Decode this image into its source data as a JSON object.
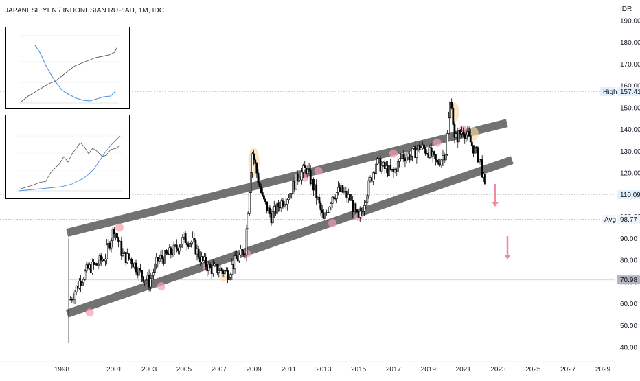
{
  "header": {
    "title": "JAPANESE YEN / INDONESIAN RUPIAH, 1M, IDC"
  },
  "colors": {
    "candle": "#000000",
    "channel": "#6b6b6b",
    "highlight_pink": "#f4a0ad",
    "highlight_yellow": "#f7d9a8",
    "arrow_pink": "#f08a9c",
    "level_line": "#b2b5be",
    "avg_line": "#9598a1"
  },
  "price_scale": {
    "unit_label": "IDR",
    "ticks": [
      "190.00",
      "180.00",
      "170.00",
      "160.00",
      "150.00",
      "140.00",
      "130.00",
      "120.00",
      "110.00",
      "100.00",
      "90.00",
      "80.00",
      "70.00",
      "60.00",
      "50.00",
      "40.00"
    ]
  },
  "time_scale": {
    "ticks": [
      "1998",
      "2001",
      "2003",
      "2005",
      "2007",
      "2009",
      "2011",
      "2013",
      "2015",
      "2017",
      "2019",
      "2021",
      "2023",
      "2025",
      "2027",
      "2029"
    ]
  },
  "levels": {
    "high": {
      "label": "High",
      "value": "157.41"
    },
    "last": {
      "value": "110.09"
    },
    "avg": {
      "label": "Avg",
      "value": "98.77"
    },
    "support": {
      "value": "70.98"
    }
  },
  "chart_data": {
    "type": "candlestick",
    "title": "JAPANESE YEN / INDONESIAN RUPIAH, 1M, IDC",
    "ylabel": "IDR",
    "ylim": [
      36,
      194
    ],
    "xlim": [
      1997.2,
      2029.7
    ],
    "x": [
      1998.5,
      1999.0,
      1999.5,
      2000.0,
      2000.5,
      2001.0,
      2001.5,
      2002.0,
      2002.5,
      2003.0,
      2003.5,
      2004.0,
      2004.5,
      2005.0,
      2005.5,
      2006.0,
      2006.5,
      2007.0,
      2007.5,
      2008.0,
      2008.5,
      2008.9,
      2009.5,
      2010.0,
      2010.5,
      2011.0,
      2011.5,
      2012.0,
      2012.5,
      2013.0,
      2013.5,
      2014.0,
      2014.5,
      2015.0,
      2015.5,
      2016.0,
      2016.5,
      2017.0,
      2017.5,
      2018.0,
      2018.5,
      2019.0,
      2019.5,
      2020.0,
      2020.3,
      2020.5,
      2021.0,
      2021.5,
      2022.0,
      2022.3
    ],
    "y": [
      62,
      70,
      76,
      78,
      82,
      95,
      82,
      80,
      74,
      70,
      80,
      82,
      85,
      90,
      88,
      80,
      76,
      76,
      74,
      80,
      85,
      130,
      108,
      100,
      106,
      110,
      118,
      122,
      112,
      98,
      110,
      112,
      108,
      98,
      112,
      125,
      122,
      120,
      128,
      128,
      132,
      130,
      124,
      130,
      156,
      135,
      140,
      133,
      125,
      110
    ],
    "high": 157.41,
    "last": 110.09,
    "avg": 98.77,
    "support": 70.98,
    "channel": [
      {
        "name": "upper",
        "points": [
          [
            1998.5,
            93
          ],
          [
            2023.5,
            143
          ]
        ]
      },
      {
        "name": "lower",
        "points": [
          [
            1998.5,
            56
          ],
          [
            2023.8,
            126
          ]
        ]
      }
    ]
  }
}
